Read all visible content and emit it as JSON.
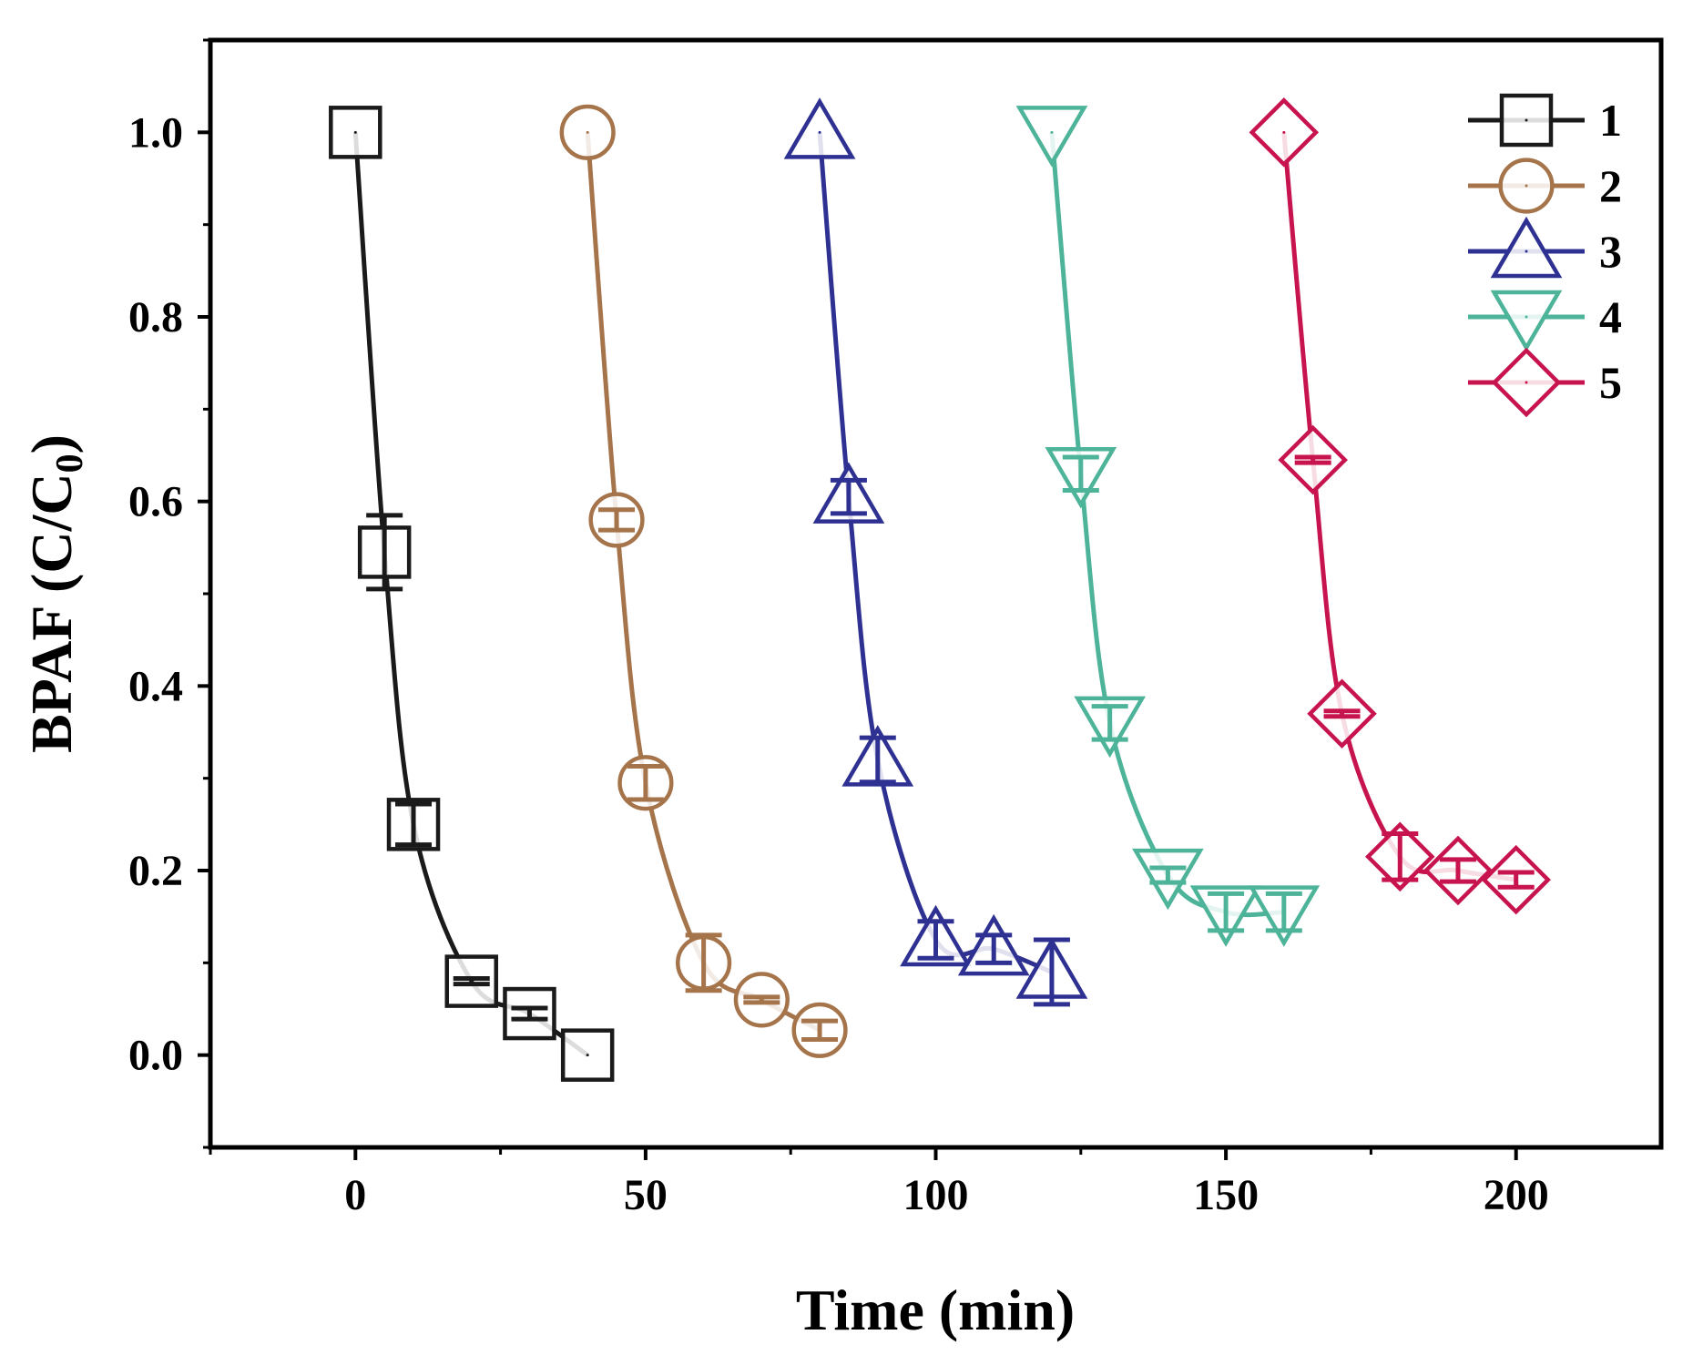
{
  "chart_data": {
    "type": "scatter",
    "xlabel": "Time (min)",
    "ylabel_main": "BPAF  (C/C",
    "ylabel_sub": "0",
    "ylabel_close": ")",
    "xlim": [
      -25,
      225
    ],
    "ylim": [
      -0.1,
      1.1
    ],
    "x_ticks": [
      0,
      50,
      100,
      150,
      200
    ],
    "x_tick_labels": [
      "0",
      "50",
      "100",
      "150",
      "200"
    ],
    "y_ticks": [
      0.0,
      0.2,
      0.4,
      0.6,
      0.8,
      1.0
    ],
    "y_tick_labels": [
      "0.0",
      "0.2",
      "0.4",
      "0.6",
      "0.8",
      "1.0"
    ],
    "legend_position": "top-right",
    "series": [
      {
        "name": "1",
        "marker": "square",
        "color": "#1a1a1a",
        "x": [
          0,
          5,
          10,
          20,
          30,
          40
        ],
        "y": [
          1.0,
          0.545,
          0.25,
          0.08,
          0.045,
          0.0
        ],
        "err": [
          0,
          0.04,
          0.022,
          0.003,
          0.006,
          0
        ]
      },
      {
        "name": "2",
        "marker": "circle",
        "color": "#a5744a",
        "x": [
          40,
          45,
          50,
          60,
          70,
          80
        ],
        "y": [
          1.0,
          0.58,
          0.295,
          0.1,
          0.06,
          0.027
        ],
        "err": [
          0,
          0.011,
          0.018,
          0.03,
          0.003,
          0.01
        ]
      },
      {
        "name": "3",
        "marker": "triangle-up",
        "color": "#2e3192",
        "x": [
          80,
          85,
          90,
          100,
          110,
          120
        ],
        "y": [
          1.0,
          0.605,
          0.32,
          0.125,
          0.115,
          0.09
        ],
        "err": [
          0,
          0.018,
          0.024,
          0.02,
          0.015,
          0.035
        ]
      },
      {
        "name": "4",
        "marker": "triangle-down",
        "color": "#4db399",
        "x": [
          120,
          125,
          130,
          140,
          150,
          160
        ],
        "y": [
          1.0,
          0.63,
          0.36,
          0.195,
          0.155,
          0.155
        ],
        "err": [
          0,
          0.018,
          0.018,
          0.008,
          0.02,
          0.02
        ]
      },
      {
        "name": "5",
        "marker": "diamond",
        "color": "#c8144e",
        "x": [
          160,
          165,
          170,
          180,
          190,
          200
        ],
        "y": [
          1.0,
          0.645,
          0.37,
          0.215,
          0.2,
          0.19
        ],
        "err": [
          0,
          0.003,
          0.003,
          0.025,
          0.012,
          0.008
        ]
      }
    ]
  }
}
